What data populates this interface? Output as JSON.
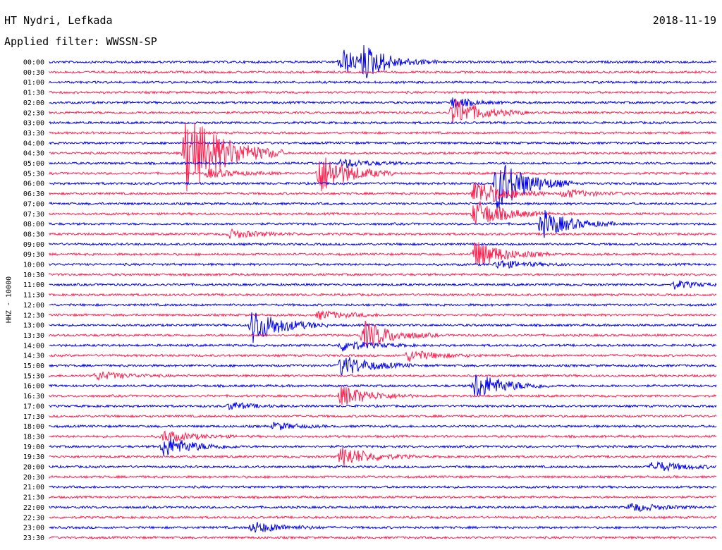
{
  "header": {
    "station": "HT Nydri, Lefkada",
    "filter": "Applied filter: WWSSN-SP",
    "date": "2018-11-19"
  },
  "chart_data": {
    "type": "line",
    "title": "HT Nydri, Lefkada",
    "subtitle": "Applied filter: WWSSN-SP",
    "ylabel": "HHZ - 10000",
    "rows": [
      "00:00",
      "00:30",
      "01:00",
      "01:30",
      "02:00",
      "02:30",
      "03:00",
      "03:30",
      "04:00",
      "04:30",
      "05:00",
      "05:30",
      "06:00",
      "06:30",
      "07:00",
      "07:30",
      "08:00",
      "08:30",
      "09:00",
      "09:30",
      "10:00",
      "10:30",
      "11:00",
      "11:30",
      "12:00",
      "12:30",
      "13:00",
      "13:30",
      "14:00",
      "14:30",
      "15:00",
      "15:30",
      "16:00",
      "16:30",
      "17:00",
      "17:30",
      "18:00",
      "18:30",
      "19:00",
      "19:30",
      "20:00",
      "20:30",
      "21:00",
      "21:30",
      "22:00",
      "22:30",
      "23:00",
      "23:30"
    ],
    "colors": {
      "even_rows": "#0000ee",
      "odd_rows": "#ff1f4f"
    },
    "grid": false,
    "events": [
      {
        "row": 0,
        "minute": 14,
        "amp": 60,
        "dur": 3,
        "span": 20
      },
      {
        "row": 0,
        "minute": 13,
        "amp": 80,
        "dur": 2,
        "span": 20
      },
      {
        "row": 5,
        "minute": 18,
        "amp": 48,
        "dur": 3,
        "span": 20
      },
      {
        "row": 9,
        "minute": 6,
        "amp": 240,
        "dur": 4,
        "span": 60
      },
      {
        "row": 4,
        "minute": 18,
        "amp": 30,
        "dur": 2,
        "span": 8
      },
      {
        "row": 10,
        "minute": 13,
        "amp": 25,
        "dur": 3,
        "span": 6
      },
      {
        "row": 11,
        "minute": 7,
        "amp": 20,
        "dur": 3,
        "span": 6
      },
      {
        "row": 11,
        "minute": 12,
        "amp": 80,
        "dur": 3,
        "span": 30
      },
      {
        "row": 12,
        "minute": 20,
        "amp": 230,
        "dur": 3,
        "span": 40
      },
      {
        "row": 13,
        "minute": 19,
        "amp": 70,
        "dur": 3,
        "span": 20
      },
      {
        "row": 13,
        "minute": 23,
        "amp": 25,
        "dur": 3,
        "span": 6
      },
      {
        "row": 15,
        "minute": 19,
        "amp": 60,
        "dur": 3,
        "span": 20
      },
      {
        "row": 16,
        "minute": 22,
        "amp": 70,
        "dur": 3,
        "span": 20
      },
      {
        "row": 17,
        "minute": 8,
        "amp": 30,
        "dur": 3,
        "span": 6
      },
      {
        "row": 19,
        "minute": 19,
        "amp": 60,
        "dur": 3,
        "span": 20
      },
      {
        "row": 20,
        "minute": 20,
        "amp": 30,
        "dur": 3,
        "span": 6
      },
      {
        "row": 22,
        "minute": 28,
        "amp": 18,
        "dur": 2,
        "span": 6
      },
      {
        "row": 25,
        "minute": 12,
        "amp": 20,
        "dur": 3,
        "span": 6
      },
      {
        "row": 26,
        "minute": 9,
        "amp": 90,
        "dur": 3,
        "span": 25
      },
      {
        "row": 27,
        "minute": 14,
        "amp": 60,
        "dur": 3,
        "span": 20
      },
      {
        "row": 28,
        "minute": 13,
        "amp": 45,
        "dur": 3,
        "span": 8
      },
      {
        "row": 29,
        "minute": 16,
        "amp": 35,
        "dur": 3,
        "span": 8
      },
      {
        "row": 30,
        "minute": 13,
        "amp": 55,
        "dur": 3,
        "span": 15
      },
      {
        "row": 31,
        "minute": 2,
        "amp": 20,
        "dur": 3,
        "span": 6
      },
      {
        "row": 32,
        "minute": 19,
        "amp": 70,
        "dur": 3,
        "span": 20
      },
      {
        "row": 33,
        "minute": 13,
        "amp": 60,
        "dur": 3,
        "span": 15
      },
      {
        "row": 34,
        "minute": 8,
        "amp": 22,
        "dur": 2,
        "span": 6
      },
      {
        "row": 36,
        "minute": 10,
        "amp": 22,
        "dur": 2,
        "span": 6
      },
      {
        "row": 37,
        "minute": 5,
        "amp": 30,
        "dur": 3,
        "span": 8
      },
      {
        "row": 38,
        "minute": 5,
        "amp": 40,
        "dur": 3,
        "span": 15
      },
      {
        "row": 39,
        "minute": 13,
        "amp": 55,
        "dur": 3,
        "span": 15
      },
      {
        "row": 40,
        "minute": 27,
        "amp": 35,
        "dur": 3,
        "span": 8
      },
      {
        "row": 44,
        "minute": 26,
        "amp": 20,
        "dur": 3,
        "span": 6
      },
      {
        "row": 46,
        "minute": 9,
        "amp": 40,
        "dur": 3,
        "span": 8
      }
    ]
  }
}
